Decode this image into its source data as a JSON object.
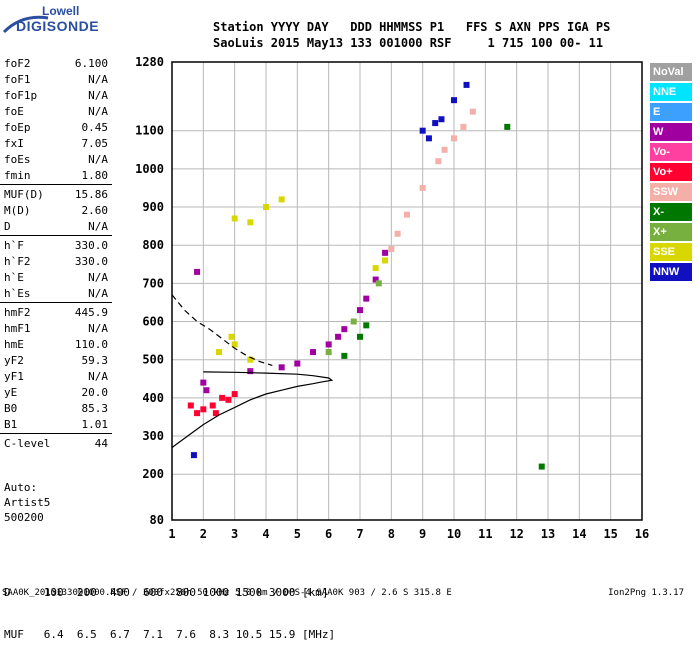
{
  "logo": {
    "top": "Lowell",
    "bottom": "DIGISONDE"
  },
  "header": {
    "line1": "Station YYYY DAY   DDD HHMMSS P1   FFS S AXN PPS IGA PS",
    "line2": "SaoLuis 2015 May13 133 001000 RSF     1 715 100 00- 11"
  },
  "params": [
    {
      "label": "foF2",
      "value": "6.100"
    },
    {
      "label": "foF1",
      "value": "N/A"
    },
    {
      "label": "foF1p",
      "value": "N/A"
    },
    {
      "label": "foE",
      "value": "N/A"
    },
    {
      "label": "foEp",
      "value": "0.45"
    },
    {
      "label": "fxI",
      "value": "7.05"
    },
    {
      "label": "foEs",
      "value": "N/A"
    },
    {
      "label": "fmin",
      "value": "1.80"
    },
    {
      "label": "MUF(D)",
      "value": "15.86",
      "sep": true
    },
    {
      "label": "M(D)",
      "value": "2.60"
    },
    {
      "label": "D",
      "value": "N/A"
    },
    {
      "label": "h`F",
      "value": "330.0",
      "sep": true
    },
    {
      "label": "h`F2",
      "value": "330.0"
    },
    {
      "label": "h`E",
      "value": "N/A"
    },
    {
      "label": "h`Es",
      "value": "N/A"
    },
    {
      "label": "hmF2",
      "value": "445.9",
      "sep": true
    },
    {
      "label": "hmF1",
      "value": "N/A"
    },
    {
      "label": "hmE",
      "value": "110.0"
    },
    {
      "label": "yF2",
      "value": "59.3"
    },
    {
      "label": "yF1",
      "value": "N/A"
    },
    {
      "label": "yE",
      "value": "20.0"
    },
    {
      "label": "B0",
      "value": "85.3"
    },
    {
      "label": "B1",
      "value": "1.01"
    },
    {
      "label": "C-level",
      "value": "44",
      "sep": true
    }
  ],
  "auto": {
    "l1": "Auto:",
    "l2": "Artist5",
    "l3": "500200"
  },
  "dm": {
    "d_line": "D     100  200  400  600  800 1000 1500 3000 [km]",
    "muf_line": "MUF   6.4  6.5  6.7  7.1  7.6  8.3 10.5 15.9 [MHz]"
  },
  "footer": {
    "left": "SAA0K_2015133001000.RSF / 300fx256h 50 kHz 5.0 km / DPS-4 SAA0K 903 / 2.6 S 315.8 E",
    "right": "Ion2Png 1.3.17"
  },
  "legend": [
    {
      "label": "NoVal",
      "color": "#a0a0a0"
    },
    {
      "label": "NNE",
      "color": "#00e5ff"
    },
    {
      "label": "E",
      "color": "#3ca0ff"
    },
    {
      "label": "W",
      "color": "#a000a0"
    },
    {
      "label": "Vo-",
      "color": "#ff40a0"
    },
    {
      "label": "Vo+",
      "color": "#ff0030"
    },
    {
      "label": "SSW",
      "color": "#f4b0a8"
    },
    {
      "label": "X-",
      "color": "#007800"
    },
    {
      "label": "X+",
      "color": "#78b040"
    },
    {
      "label": "SSE",
      "color": "#d8d800"
    },
    {
      "label": "NNW",
      "color": "#1010c0"
    }
  ],
  "chart_data": {
    "type": "scatter",
    "title": "",
    "xlabel": "",
    "ylabel": "",
    "xlim": [
      1,
      16
    ],
    "ylim": [
      80,
      1280
    ],
    "x_ticks": [
      1,
      2,
      3,
      4,
      5,
      6,
      7,
      8,
      9,
      10,
      11,
      12,
      13,
      14,
      15,
      16
    ],
    "y_ticks": [
      80,
      200,
      300,
      400,
      500,
      600,
      700,
      800,
      900,
      1000,
      1100,
      1280
    ],
    "grid": true,
    "legend_position": "right",
    "traces": [
      {
        "name": "SSW",
        "points": [
          [
            8.0,
            790
          ],
          [
            8.5,
            880
          ],
          [
            9.0,
            950
          ],
          [
            9.5,
            1020
          ],
          [
            10.0,
            1080
          ],
          [
            10.3,
            1110
          ],
          [
            10.6,
            1150
          ],
          [
            7.8,
            760
          ],
          [
            8.2,
            830
          ],
          [
            9.7,
            1050
          ]
        ]
      },
      {
        "name": "W",
        "points": [
          [
            3.5,
            470
          ],
          [
            4.5,
            480
          ],
          [
            5.0,
            490
          ],
          [
            5.5,
            520
          ],
          [
            6.0,
            540
          ],
          [
            6.5,
            580
          ],
          [
            7.0,
            630
          ],
          [
            7.5,
            710
          ],
          [
            7.8,
            780
          ],
          [
            2.0,
            440
          ],
          [
            1.8,
            730
          ],
          [
            2.1,
            420
          ],
          [
            6.3,
            560
          ],
          [
            7.2,
            660
          ]
        ]
      },
      {
        "name": "Vo+",
        "points": [
          [
            1.6,
            380
          ],
          [
            1.8,
            360
          ],
          [
            2.0,
            370
          ],
          [
            2.3,
            380
          ],
          [
            2.6,
            400
          ],
          [
            3.0,
            410
          ],
          [
            2.8,
            395
          ],
          [
            2.4,
            360
          ]
        ]
      },
      {
        "name": "SSE",
        "points": [
          [
            2.5,
            520
          ],
          [
            3.0,
            540
          ],
          [
            3.5,
            500
          ],
          [
            3.0,
            870
          ],
          [
            3.5,
            860
          ],
          [
            4.0,
            900
          ],
          [
            4.5,
            920
          ],
          [
            7.5,
            740
          ],
          [
            7.8,
            760
          ],
          [
            2.9,
            560
          ]
        ]
      },
      {
        "name": "NNW",
        "points": [
          [
            9.0,
            1100
          ],
          [
            9.2,
            1080
          ],
          [
            9.4,
            1120
          ],
          [
            9.6,
            1130
          ],
          [
            10.0,
            1180
          ],
          [
            10.4,
            1220
          ],
          [
            1.7,
            250
          ]
        ]
      },
      {
        "name": "X-",
        "points": [
          [
            6.5,
            510
          ],
          [
            7.0,
            560
          ],
          [
            7.2,
            590
          ],
          [
            11.7,
            1110
          ],
          [
            12.8,
            220
          ]
        ]
      },
      {
        "name": "X+",
        "points": [
          [
            6.0,
            520
          ],
          [
            6.8,
            600
          ],
          [
            7.6,
            700
          ]
        ]
      }
    ],
    "lines": [
      {
        "name": "profile",
        "points": [
          [
            1.0,
            270
          ],
          [
            1.5,
            300
          ],
          [
            2.0,
            330
          ],
          [
            2.5,
            355
          ],
          [
            3.0,
            375
          ],
          [
            3.5,
            395
          ],
          [
            4.0,
            410
          ],
          [
            4.5,
            420
          ],
          [
            5.0,
            430
          ],
          [
            5.5,
            437
          ],
          [
            5.8,
            442
          ],
          [
            6.1,
            446
          ],
          [
            6.0,
            452
          ],
          [
            5.5,
            458
          ],
          [
            5.0,
            462
          ],
          [
            4.0,
            465
          ],
          [
            3.0,
            467
          ],
          [
            2.0,
            468
          ]
        ]
      },
      {
        "name": "dashed",
        "points": [
          [
            1.0,
            670
          ],
          [
            1.4,
            630
          ],
          [
            1.8,
            600
          ],
          [
            2.2,
            580
          ],
          [
            2.6,
            555
          ],
          [
            3.0,
            530
          ],
          [
            3.4,
            510
          ],
          [
            3.8,
            495
          ],
          [
            4.2,
            485
          ]
        ]
      }
    ]
  }
}
